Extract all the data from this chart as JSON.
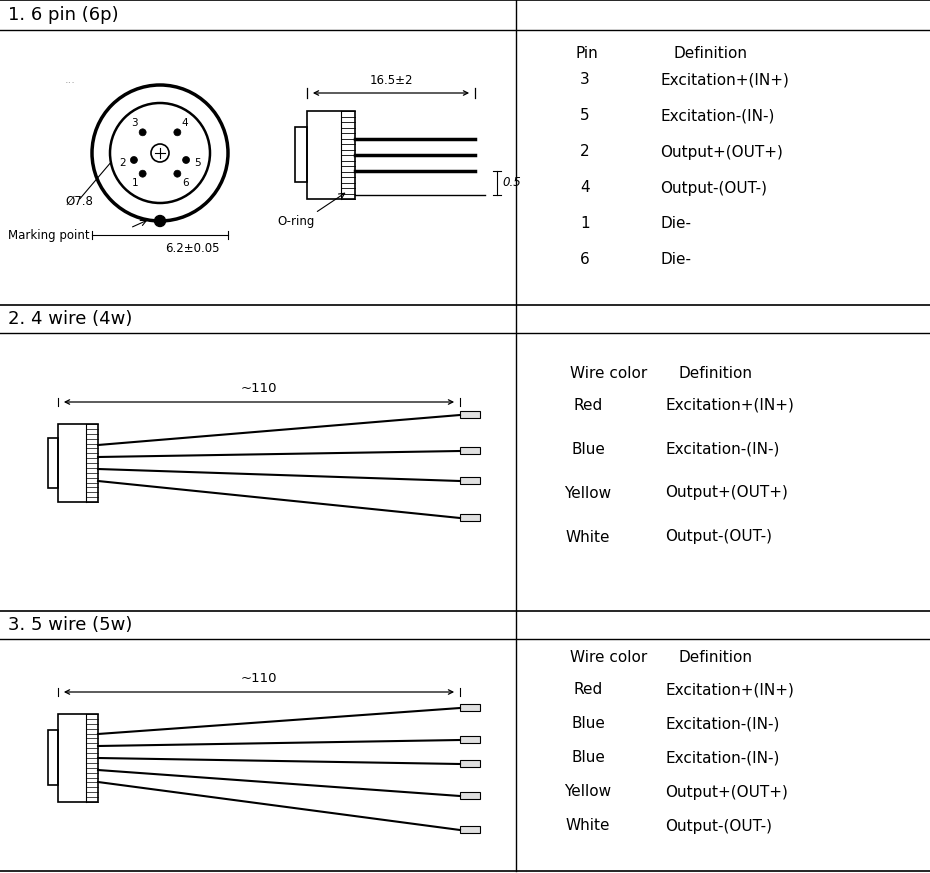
{
  "section1_title": "1. 6 pin (6p)",
  "section2_title": "2. 4 wire (4w)",
  "section3_title": "3. 5 wire (5w)",
  "pin_header": [
    "Pin",
    "Definition"
  ],
  "pin_data": [
    [
      "3",
      "Excitation+(IN+)"
    ],
    [
      "5",
      "Excitation-(IN-)"
    ],
    [
      "2",
      "Output+(OUT+)"
    ],
    [
      "4",
      "Output-(OUT-)"
    ],
    [
      "1",
      "Die-"
    ],
    [
      "6",
      "Die-"
    ]
  ],
  "wire4_header": [
    "Wire color",
    "Definition"
  ],
  "wire4_data": [
    [
      "Red",
      "Excitation+(IN+)"
    ],
    [
      "Blue",
      "Excitation-(IN-)"
    ],
    [
      "Yellow",
      "Output+(OUT+)"
    ],
    [
      "White",
      "Output-(OUT-)"
    ]
  ],
  "wire5_header": [
    "Wire color",
    "Definition"
  ],
  "wire5_data": [
    [
      "Red",
      "Excitation+(IN+)"
    ],
    [
      "Blue",
      "Excitation-(IN-)"
    ],
    [
      "Blue",
      "Excitation-(IN-)"
    ],
    [
      "Yellow",
      "Output+(OUT+)"
    ],
    [
      "White",
      "Output-(OUT-)"
    ]
  ],
  "dim_16_5": "16.5±2",
  "dim_0_5": "0.5",
  "dim_phi": "Ø7.8",
  "dim_6_2": "6.2±0.05",
  "dim_110_4w": "~110",
  "dim_110_5w": "~110",
  "label_oring": "O-ring",
  "label_marking": "Marking point",
  "bg_color": "#ffffff",
  "line_color": "#000000",
  "text_color": "#000000"
}
